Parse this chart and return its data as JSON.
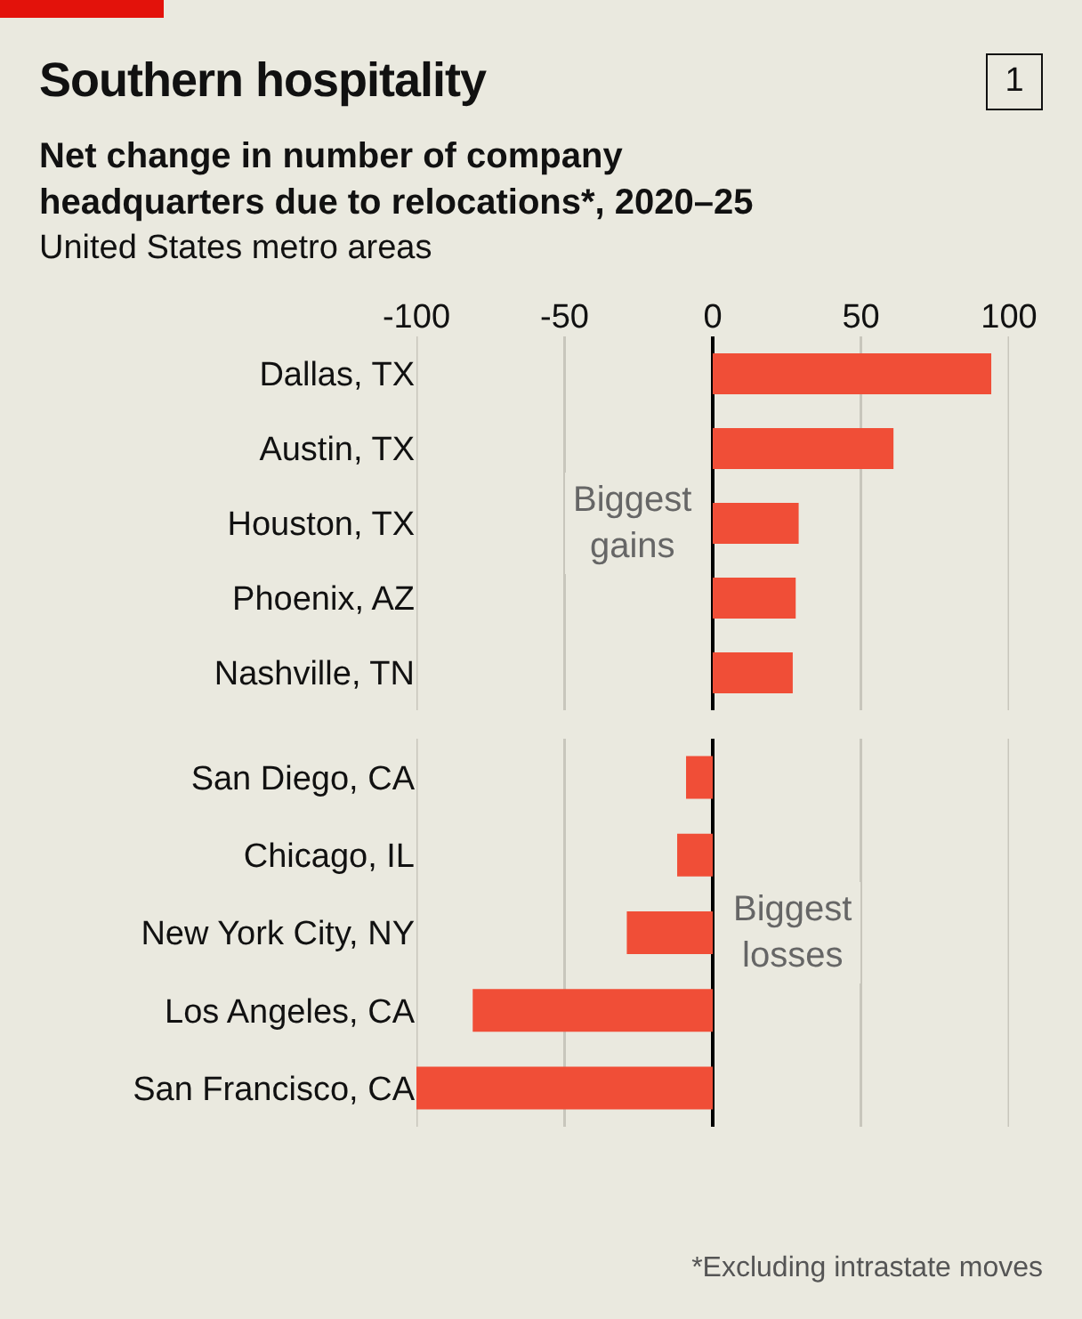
{
  "chart_data": [
    {
      "type": "bar",
      "orientation": "horizontal",
      "title": "Southern hospitality",
      "subtitle": "Net change in number of company headquarters due to relocations*, 2020–25",
      "annotations": [
        "United States metro areas",
        "1",
        "Biggest gains"
      ],
      "categories": [
        "Dallas, TX",
        "Austin, TX",
        "Houston, TX",
        "Phoenix, AZ",
        "Nashville, TN"
      ],
      "series": [
        {
          "color": "#f04e37",
          "values": [
            94,
            61,
            29,
            28,
            27
          ]
        }
      ],
      "xlim": [
        -100,
        100
      ],
      "xticks": [
        -100,
        -50,
        0,
        50,
        100
      ],
      "grid": "x"
    },
    {
      "type": "bar",
      "orientation": "horizontal",
      "annotations": [
        "Biggest losses",
        "*Excluding intrastate moves"
      ],
      "categories": [
        "San Diego, CA",
        "Chicago, IL",
        "New York City, NY",
        "Los Angeles, CA",
        "San Francisco, CA"
      ],
      "series": [
        {
          "color": "#f04e37",
          "values": [
            -9,
            -12,
            -29,
            -81,
            -100
          ]
        }
      ],
      "xlim": [
        -100,
        100
      ],
      "xticks": [
        -100,
        -50,
        0,
        50,
        100
      ],
      "grid": "x",
      "tick_labels": "y"
    }
  ]
}
